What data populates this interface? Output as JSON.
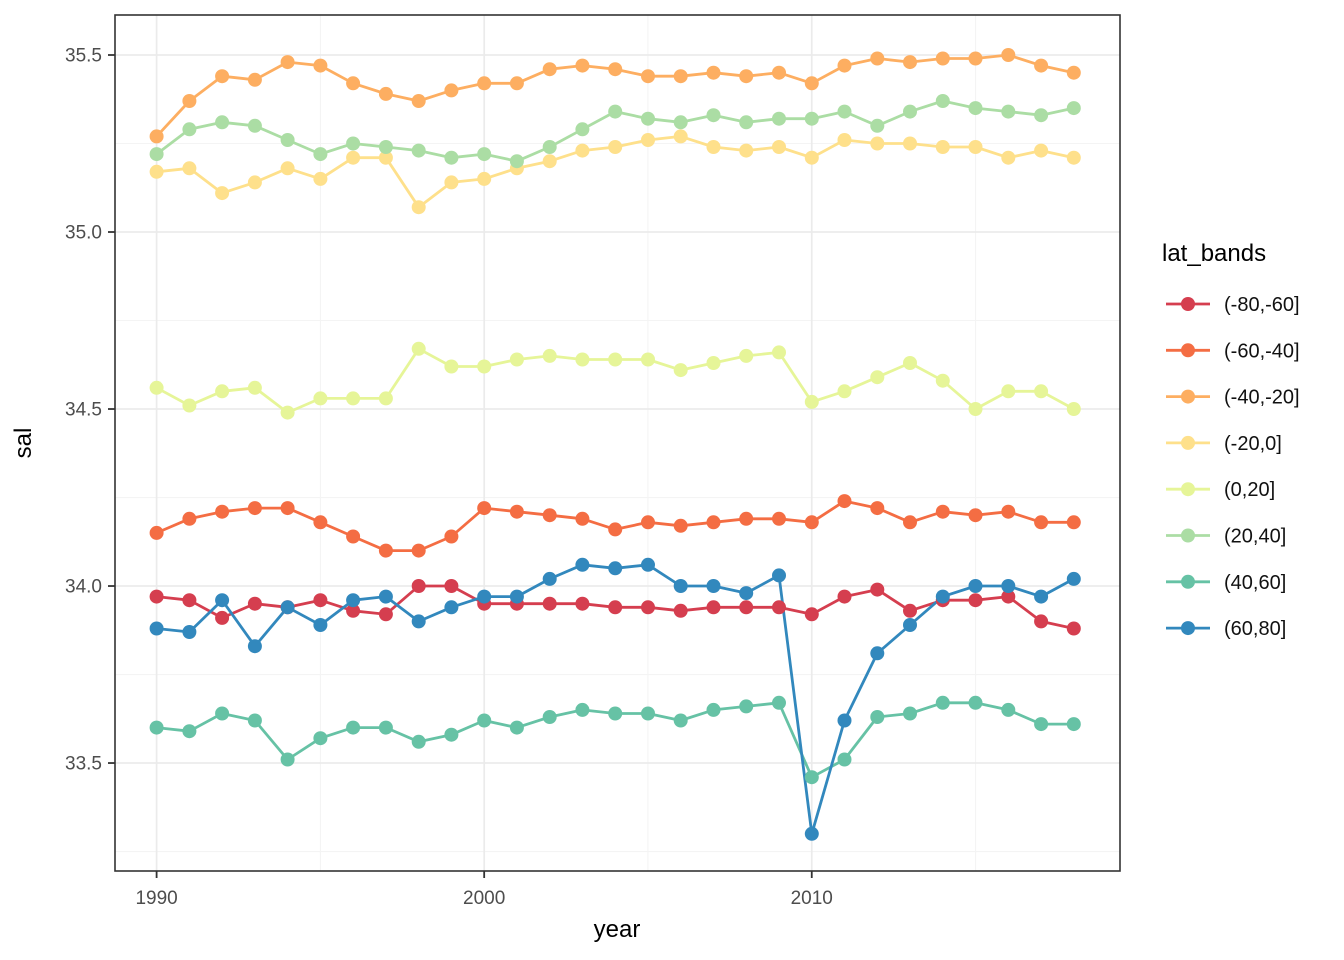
{
  "figure": {
    "x_axis_title": "year",
    "y_axis_title": "sal",
    "x_tick_labels": [
      "1990",
      "2000",
      "2010"
    ],
    "y_tick_labels": [
      "33.5",
      "34.0",
      "34.5",
      "35.0",
      "35.5"
    ]
  },
  "legend": {
    "title": "lat_bands",
    "items": [
      {
        "label": "(-80,-60]",
        "color": "#D53E4F"
      },
      {
        "label": "(-60,-40]",
        "color": "#F46D43"
      },
      {
        "label": "(-40,-20]",
        "color": "#FDAE61"
      },
      {
        "label": "(-20,0]",
        "color": "#FEE08B"
      },
      {
        "label": "(0,20]",
        "color": "#E6F598"
      },
      {
        "label": "(20,40]",
        "color": "#ABDDA4"
      },
      {
        "label": "(40,60]",
        "color": "#66C2A5"
      },
      {
        "label": "(60,80]",
        "color": "#3288BD"
      }
    ]
  },
  "colors": {
    "background": "#FFFFFF",
    "panel_background": "#FFFFFF",
    "panel_border": "#333333",
    "grid_major": "#EBEBEB",
    "grid_minor": "#F4F4F4",
    "tick_mark": "#333333",
    "axis_text": "#4D4D4D",
    "title_text": "#000000"
  },
  "chart_data": {
    "type": "line",
    "title": "",
    "xlabel": "year",
    "ylabel": "sal",
    "legend_title": "lat_bands",
    "legend_position": "right",
    "grid": true,
    "x_domain": [
      1988.73,
      2019.41
    ],
    "y_domain": [
      33.195,
      35.613
    ],
    "x_major_ticks": [
      1990,
      2000,
      2010
    ],
    "x_minor_gridlines": [
      1995,
      2005,
      2015
    ],
    "y_major_ticks": [
      33.5,
      34.0,
      34.5,
      35.0,
      35.5
    ],
    "y_minor_gridlines": [
      33.25,
      33.75,
      34.25,
      34.75,
      35.25
    ],
    "x": [
      1990,
      1991,
      1992,
      1993,
      1994,
      1995,
      1996,
      1997,
      1998,
      1999,
      2000,
      2001,
      2002,
      2003,
      2004,
      2005,
      2006,
      2007,
      2008,
      2009,
      2010,
      2011,
      2012,
      2013,
      2014,
      2015,
      2016,
      2017,
      2018
    ],
    "series": [
      {
        "name": "(-80,-60]",
        "color": "#D53E4F",
        "values": [
          33.97,
          33.96,
          33.91,
          33.95,
          33.94,
          33.96,
          33.93,
          33.92,
          34.0,
          34.0,
          33.95,
          33.95,
          33.95,
          33.95,
          33.94,
          33.94,
          33.93,
          33.94,
          33.94,
          33.94,
          33.92,
          33.97,
          33.99,
          33.93,
          33.96,
          33.96,
          33.97,
          33.9,
          33.88
        ]
      },
      {
        "name": "(-60,-40]",
        "color": "#F46D43",
        "values": [
          34.15,
          34.19,
          34.21,
          34.22,
          34.22,
          34.18,
          34.14,
          34.1,
          34.1,
          34.14,
          34.22,
          34.21,
          34.2,
          34.19,
          34.16,
          34.18,
          34.17,
          34.18,
          34.19,
          34.19,
          34.18,
          34.24,
          34.22,
          34.18,
          34.21,
          34.2,
          34.21,
          34.18,
          34.18
        ]
      },
      {
        "name": "(-40,-20]",
        "color": "#FDAE61",
        "values": [
          35.27,
          35.37,
          35.44,
          35.43,
          35.48,
          35.47,
          35.42,
          35.39,
          35.37,
          35.4,
          35.42,
          35.42,
          35.46,
          35.47,
          35.46,
          35.44,
          35.44,
          35.45,
          35.44,
          35.45,
          35.42,
          35.47,
          35.49,
          35.48,
          35.49,
          35.49,
          35.5,
          35.47,
          35.45
        ]
      },
      {
        "name": "(-20,0]",
        "color": "#FEE08B",
        "values": [
          35.17,
          35.18,
          35.11,
          35.14,
          35.18,
          35.15,
          35.21,
          35.21,
          35.07,
          35.14,
          35.15,
          35.18,
          35.2,
          35.23,
          35.24,
          35.26,
          35.27,
          35.24,
          35.23,
          35.24,
          35.21,
          35.26,
          35.25,
          35.25,
          35.24,
          35.24,
          35.21,
          35.23,
          35.21
        ]
      },
      {
        "name": "(0,20]",
        "color": "#E6F598",
        "values": [
          34.56,
          34.51,
          34.55,
          34.56,
          34.49,
          34.53,
          34.53,
          34.53,
          34.67,
          34.62,
          34.62,
          34.64,
          34.65,
          34.64,
          34.64,
          34.64,
          34.61,
          34.63,
          34.65,
          34.66,
          34.52,
          34.55,
          34.59,
          34.63,
          34.58,
          34.5,
          34.55,
          34.55,
          34.5
        ]
      },
      {
        "name": "(20,40]",
        "color": "#ABDDA4",
        "values": [
          35.22,
          35.29,
          35.31,
          35.3,
          35.26,
          35.22,
          35.25,
          35.24,
          35.23,
          35.21,
          35.22,
          35.2,
          35.24,
          35.29,
          35.34,
          35.32,
          35.31,
          35.33,
          35.31,
          35.32,
          35.32,
          35.34,
          35.3,
          35.34,
          35.37,
          35.35,
          35.34,
          35.33,
          35.35
        ]
      },
      {
        "name": "(40,60]",
        "color": "#66C2A5",
        "values": [
          33.6,
          33.59,
          33.64,
          33.62,
          33.51,
          33.57,
          33.6,
          33.6,
          33.56,
          33.58,
          33.62,
          33.6,
          33.63,
          33.65,
          33.64,
          33.64,
          33.62,
          33.65,
          33.66,
          33.67,
          33.46,
          33.51,
          33.63,
          33.64,
          33.67,
          33.67,
          33.65,
          33.61,
          33.61
        ]
      },
      {
        "name": "(60,80]",
        "color": "#3288BD",
        "values": [
          33.88,
          33.87,
          33.96,
          33.83,
          33.94,
          33.89,
          33.96,
          33.97,
          33.9,
          33.94,
          33.97,
          33.97,
          34.02,
          34.06,
          34.05,
          34.06,
          34.0,
          34.0,
          33.98,
          34.03,
          33.3,
          33.62,
          33.81,
          33.89,
          33.97,
          34.0,
          34.0,
          33.97,
          34.02
        ]
      }
    ]
  }
}
